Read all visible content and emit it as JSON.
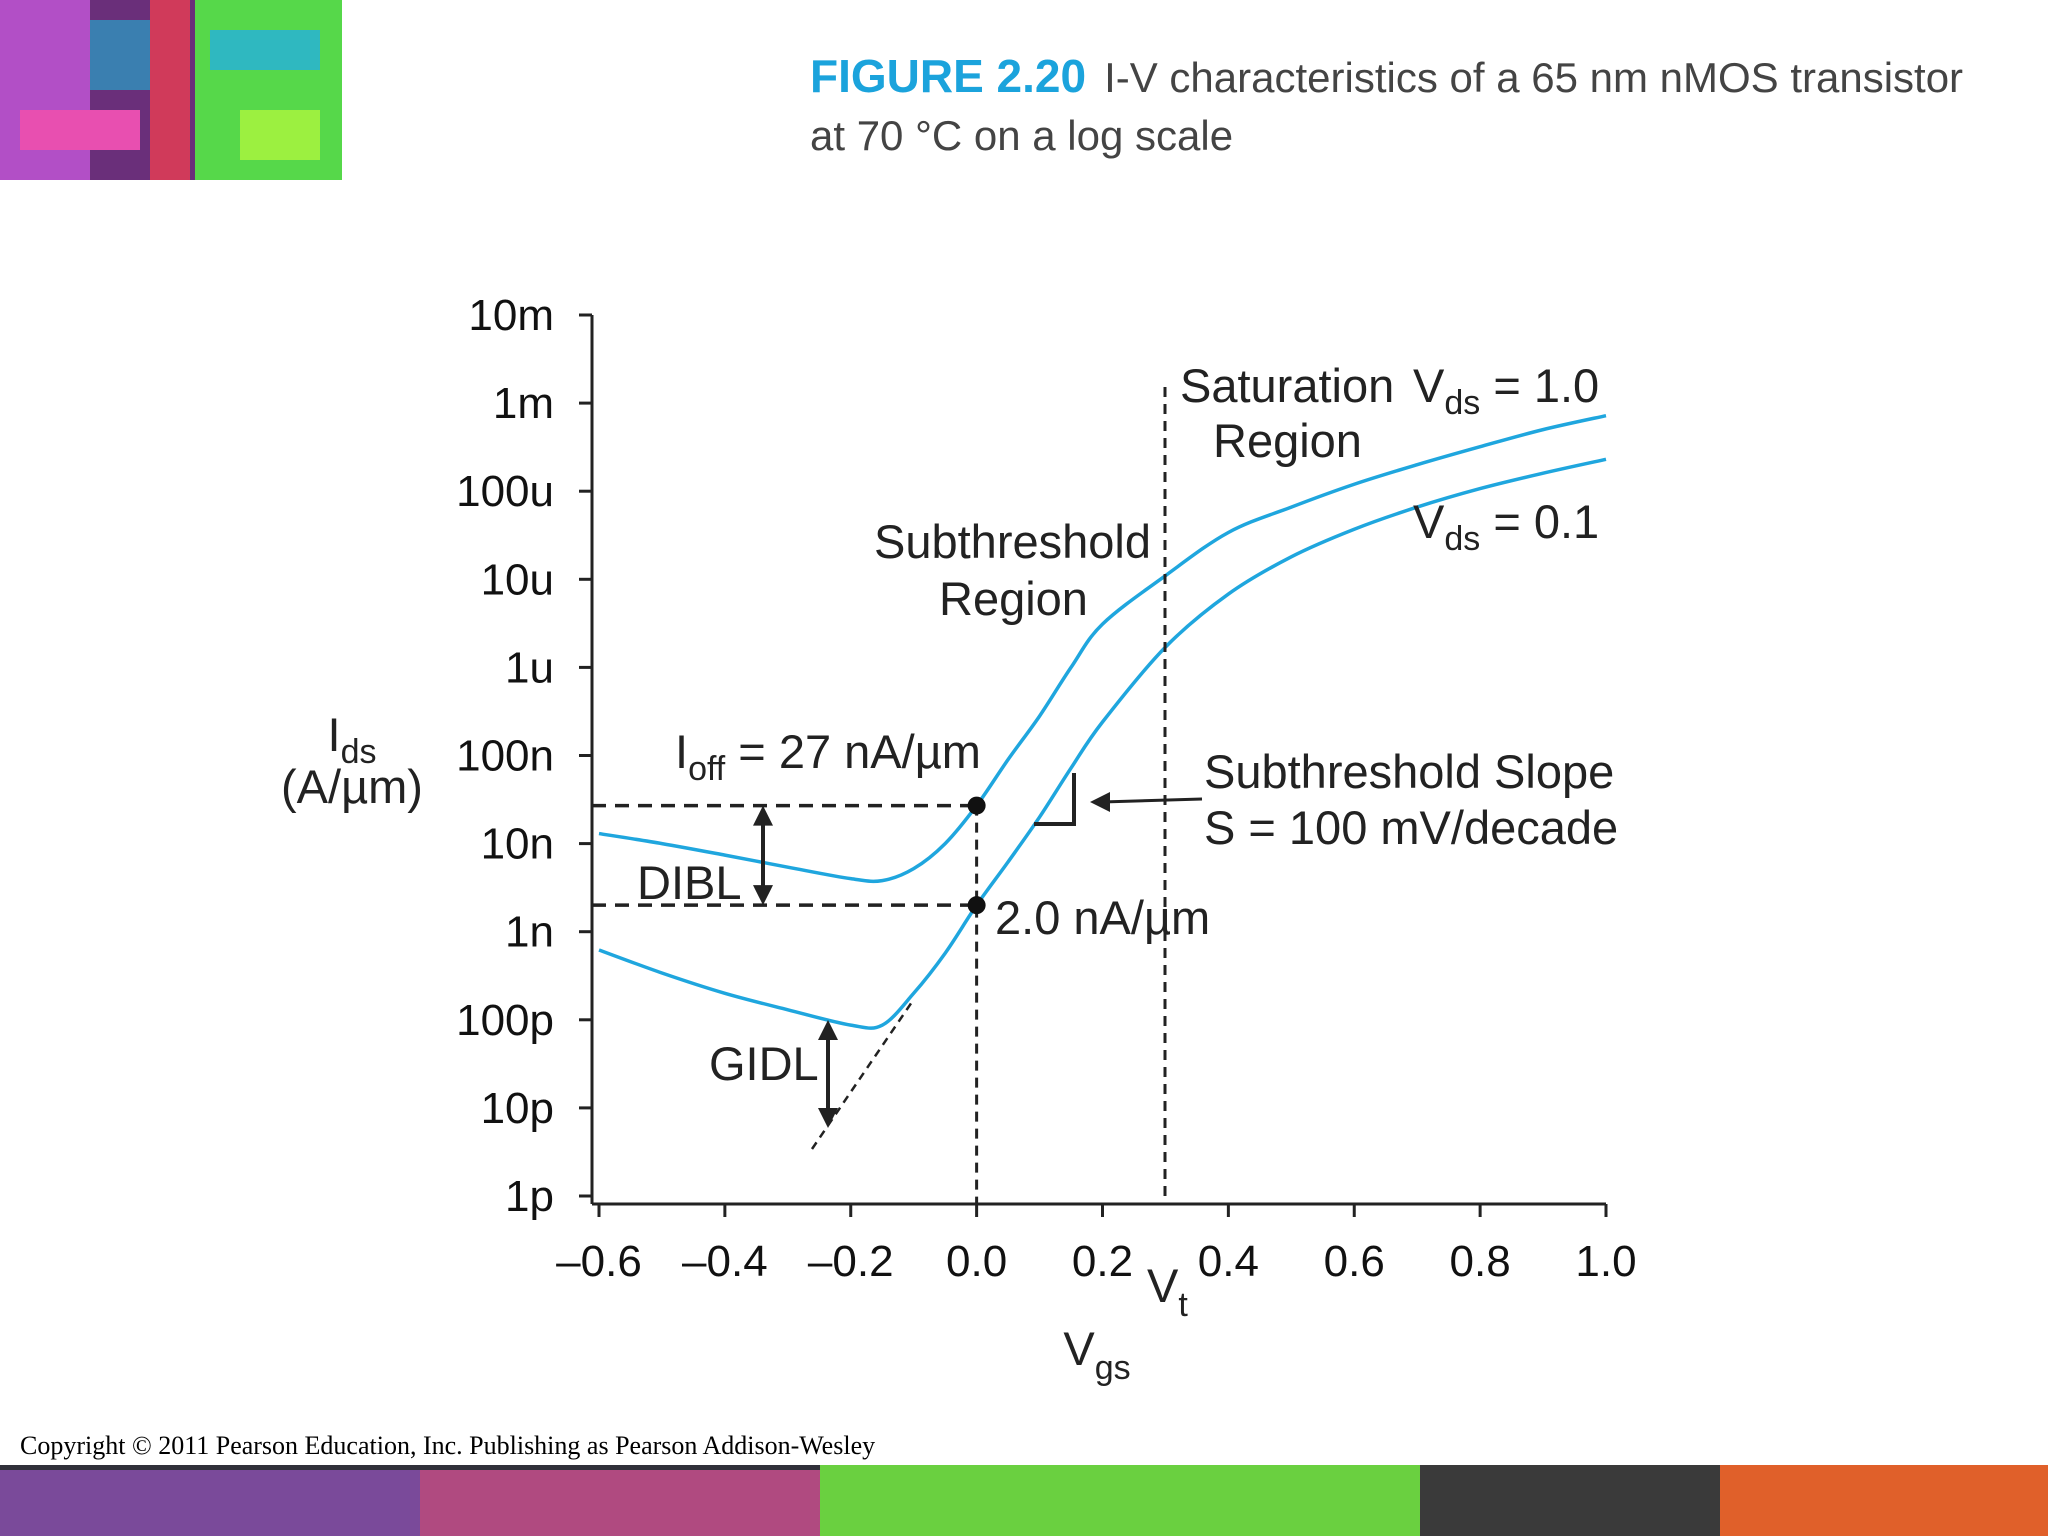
{
  "header": {
    "figure": "FIGURE 2.20",
    "caption_line1": "I-V characteristics of a 65 nm nMOS transistor",
    "caption_line2": "at 70 °C on a log scale"
  },
  "chart_data": {
    "type": "line",
    "log_y": true,
    "x": [
      -0.6,
      -0.5,
      -0.4,
      -0.3,
      -0.2,
      -0.15,
      -0.1,
      -0.05,
      0,
      0.05,
      0.1,
      0.15,
      0.2,
      0.3,
      0.4,
      0.5,
      0.6,
      0.7,
      0.8,
      0.9,
      1.0
    ],
    "series": [
      {
        "label": {
          "main": "V",
          "sub": "ds",
          "rest": " = 1.0"
        },
        "color": "#1fa6de",
        "values": [
          1.3e-08,
          1e-08,
          7.4e-09,
          5.4e-09,
          4e-09,
          3.8e-09,
          5.2e-09,
          1e-08,
          2.7e-08,
          9e-08,
          2.8e-07,
          1e-06,
          3.1e-06,
          1.1e-05,
          3.4e-05,
          6.6e-05,
          0.00012,
          0.0002,
          0.00032,
          0.0005,
          0.00072
        ]
      },
      {
        "label": {
          "main": "V",
          "sub": "ds",
          "rest": " = 0.1"
        },
        "color": "#1fa6de",
        "values": [
          6.2e-10,
          3.4e-10,
          2e-10,
          1.3e-10,
          8.7e-11,
          8.7e-11,
          2e-10,
          5.7e-10,
          2e-09,
          6.2e-09,
          2e-08,
          7.2e-08,
          2.4e-07,
          1.7e-06,
          6.8e-06,
          1.8e-05,
          3.7e-05,
          6.6e-05,
          0.000107,
          0.00016,
          0.00023
        ]
      }
    ],
    "markers": [
      {
        "x": 0,
        "y": 2.7e-08
      },
      {
        "x": 0,
        "y": 2e-09
      }
    ],
    "xlim": [
      -0.61,
      1.0
    ],
    "xticks": [
      {
        "value": -0.6,
        "label": "–0.6"
      },
      {
        "value": -0.4,
        "label": "–0.4"
      },
      {
        "value": -0.2,
        "label": "–0.2"
      },
      {
        "value": 0,
        "label": "0.0"
      },
      0.2,
      0.4,
      0.6,
      0.8,
      {
        "value": 1,
        "label": "1.0"
      }
    ],
    "ylim": [
      1e-12,
      0.01
    ],
    "yticks": [
      {
        "value": 1e-12,
        "label": "1p"
      },
      {
        "value": 1e-11,
        "label": "10p"
      },
      {
        "value": 1e-10,
        "label": "100p"
      },
      {
        "value": 1e-09,
        "label": "1n"
      },
      {
        "value": 1e-08,
        "label": "10n"
      },
      {
        "value": 1e-07,
        "label": "100n"
      },
      {
        "value": 1e-06,
        "label": "1u"
      },
      {
        "value": 1e-05,
        "label": "10u"
      },
      {
        "value": 0.0001,
        "label": "100u"
      },
      {
        "value": 0.001,
        "label": "1m"
      },
      {
        "value": 0.01,
        "label": "10m"
      }
    ],
    "y_label": {
      "main": "I",
      "sub": "ds",
      "line2": "(A/µm)"
    },
    "x_label": {
      "main": "V",
      "sub": "gs"
    },
    "vt_label": {
      "main": "V",
      "sub": "t"
    },
    "annotations": {
      "saturation": [
        "Saturation",
        "Region"
      ],
      "subthreshold": [
        "Subthreshold",
        "Region"
      ],
      "ioff": {
        "main": "I",
        "sub": "off",
        "rest": " = 27 nA/µm"
      },
      "ion_low": "2.0 nA/µm",
      "slope": [
        "Subthreshold Slope",
        "S = 100 mV/decade"
      ],
      "dibl": "DIBL",
      "gidl": "GIDL"
    }
  },
  "footer": {
    "copyright": "Copyright © 2011 Pearson Education, Inc. Publishing as Pearson Addison-Wesley"
  }
}
